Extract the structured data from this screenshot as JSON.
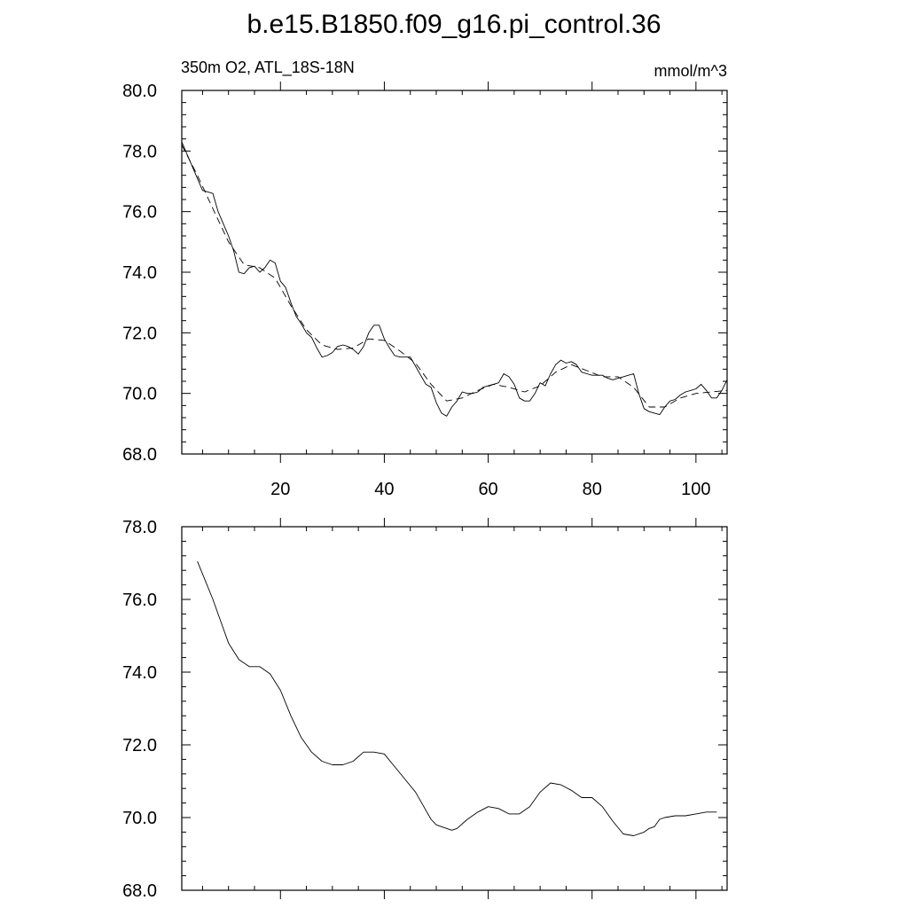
{
  "title": "b.e15.B1850.f09_g16.pi_control.36",
  "chart_data": [
    {
      "type": "line",
      "left_label": "350m O2, ATL_18S-18N",
      "right_label": "mmol/m^3",
      "xlim": [
        1,
        106
      ],
      "ylim": [
        68.0,
        80.0
      ],
      "x_ticks": [
        20,
        40,
        60,
        80,
        100
      ],
      "x_tick_labels": [
        "20",
        "40",
        "60",
        "80",
        "100"
      ],
      "y_ticks": [
        68,
        70,
        72,
        74,
        76,
        78,
        80
      ],
      "y_tick_labels": [
        "68.0",
        "70.0",
        "72.0",
        "74.0",
        "76.0",
        "78.0",
        "80.0"
      ],
      "series": [
        {
          "style": "solid",
          "x": [
            1,
            3,
            5,
            7,
            8,
            10,
            11,
            12,
            13,
            14,
            15,
            16,
            17,
            18,
            19,
            20,
            21,
            22,
            23,
            24,
            25,
            26,
            27,
            28,
            29,
            30,
            31,
            32,
            33,
            34,
            35,
            36,
            37,
            38,
            39,
            40,
            41,
            42,
            43,
            44,
            45,
            46,
            47,
            48,
            49,
            50,
            51,
            52,
            53,
            54,
            55,
            56,
            57,
            58,
            59,
            60,
            61,
            62,
            63,
            64,
            65,
            66,
            67,
            68,
            69,
            70,
            71,
            72,
            73,
            74,
            75,
            76,
            77,
            78,
            79,
            80,
            81,
            82,
            83,
            84,
            85,
            86,
            87,
            88,
            89,
            90,
            91,
            92,
            93,
            94,
            95,
            96,
            97,
            98,
            99,
            100,
            101,
            102,
            103,
            104,
            105,
            106
          ],
          "y": [
            78.3,
            77.5,
            76.7,
            76.6,
            76.0,
            75.2,
            74.7,
            74.0,
            73.95,
            74.15,
            74.2,
            74.0,
            74.15,
            74.4,
            74.3,
            73.7,
            73.5,
            73.0,
            72.55,
            72.3,
            72.0,
            71.85,
            71.5,
            71.2,
            71.25,
            71.35,
            71.55,
            71.6,
            71.55,
            71.45,
            71.3,
            71.55,
            72.0,
            72.25,
            72.25,
            71.8,
            71.5,
            71.25,
            71.2,
            71.2,
            71.2,
            70.9,
            70.6,
            70.3,
            70.2,
            69.7,
            69.35,
            69.25,
            69.55,
            69.75,
            70.05,
            70.0,
            70.0,
            70.05,
            70.2,
            70.25,
            70.3,
            70.35,
            70.65,
            70.55,
            70.3,
            69.85,
            69.75,
            69.75,
            70.0,
            70.35,
            70.25,
            70.65,
            70.95,
            71.1,
            71.0,
            71.05,
            70.95,
            70.7,
            70.65,
            70.6,
            70.6,
            70.6,
            70.5,
            70.45,
            70.5,
            70.55,
            70.6,
            70.65,
            70.0,
            69.5,
            69.4,
            69.35,
            69.3,
            69.55,
            69.75,
            69.8,
            69.95,
            70.05,
            70.1,
            70.15,
            70.3,
            70.1,
            69.85,
            69.85,
            70.1,
            70.45
          ]
        },
        {
          "style": "dashed",
          "x": [
            1,
            4,
            7,
            10,
            13,
            16,
            19,
            22,
            25,
            28,
            31,
            34,
            37,
            40,
            43,
            46,
            49,
            52,
            55,
            58,
            61,
            64,
            67,
            70,
            73,
            76,
            79,
            82,
            85,
            88,
            91,
            94,
            97,
            100,
            103,
            106
          ],
          "y": [
            78.2,
            77.2,
            76.1,
            75.0,
            74.25,
            74.15,
            73.8,
            72.9,
            72.1,
            71.6,
            71.45,
            71.5,
            71.8,
            71.75,
            71.4,
            71.0,
            70.3,
            69.75,
            69.85,
            70.1,
            70.3,
            70.2,
            70.05,
            70.25,
            70.7,
            70.95,
            70.75,
            70.55,
            70.55,
            70.2,
            69.55,
            69.55,
            69.85,
            70.0,
            70.05,
            70.1
          ]
        }
      ]
    },
    {
      "type": "line",
      "xlim": [
        1,
        106
      ],
      "ylim": [
        68.0,
        78.0
      ],
      "x_ticks": [
        20,
        40,
        60,
        80,
        100
      ],
      "y_ticks": [
        68,
        70,
        72,
        74,
        76,
        78
      ],
      "y_tick_labels": [
        "68.0",
        "70.0",
        "72.0",
        "74.0",
        "76.0",
        "78.0"
      ],
      "series": [
        {
          "style": "solid",
          "x": [
            4,
            7,
            10,
            12,
            14,
            15,
            16,
            18,
            20,
            22,
            24,
            26,
            28,
            30,
            32,
            34,
            36,
            38,
            40,
            42,
            44,
            46,
            48,
            49,
            50,
            51,
            52,
            53,
            54,
            56,
            58,
            60,
            62,
            64,
            66,
            68,
            70,
            72,
            74,
            76,
            78,
            80,
            82,
            84,
            86,
            88,
            90,
            91,
            92,
            93,
            94,
            96,
            98,
            100,
            102,
            104
          ],
          "y": [
            77.05,
            76.0,
            74.8,
            74.35,
            74.15,
            74.15,
            74.15,
            73.95,
            73.5,
            72.8,
            72.2,
            71.8,
            71.55,
            71.45,
            71.45,
            71.55,
            71.8,
            71.8,
            71.75,
            71.4,
            71.05,
            70.7,
            70.2,
            69.95,
            69.8,
            69.75,
            69.7,
            69.65,
            69.7,
            69.95,
            70.15,
            70.3,
            70.25,
            70.1,
            70.1,
            70.3,
            70.7,
            70.95,
            70.9,
            70.75,
            70.55,
            70.55,
            70.3,
            69.9,
            69.55,
            69.5,
            69.6,
            69.7,
            69.75,
            69.95,
            70.0,
            70.05,
            70.05,
            70.1,
            70.15,
            70.15
          ]
        }
      ]
    }
  ]
}
